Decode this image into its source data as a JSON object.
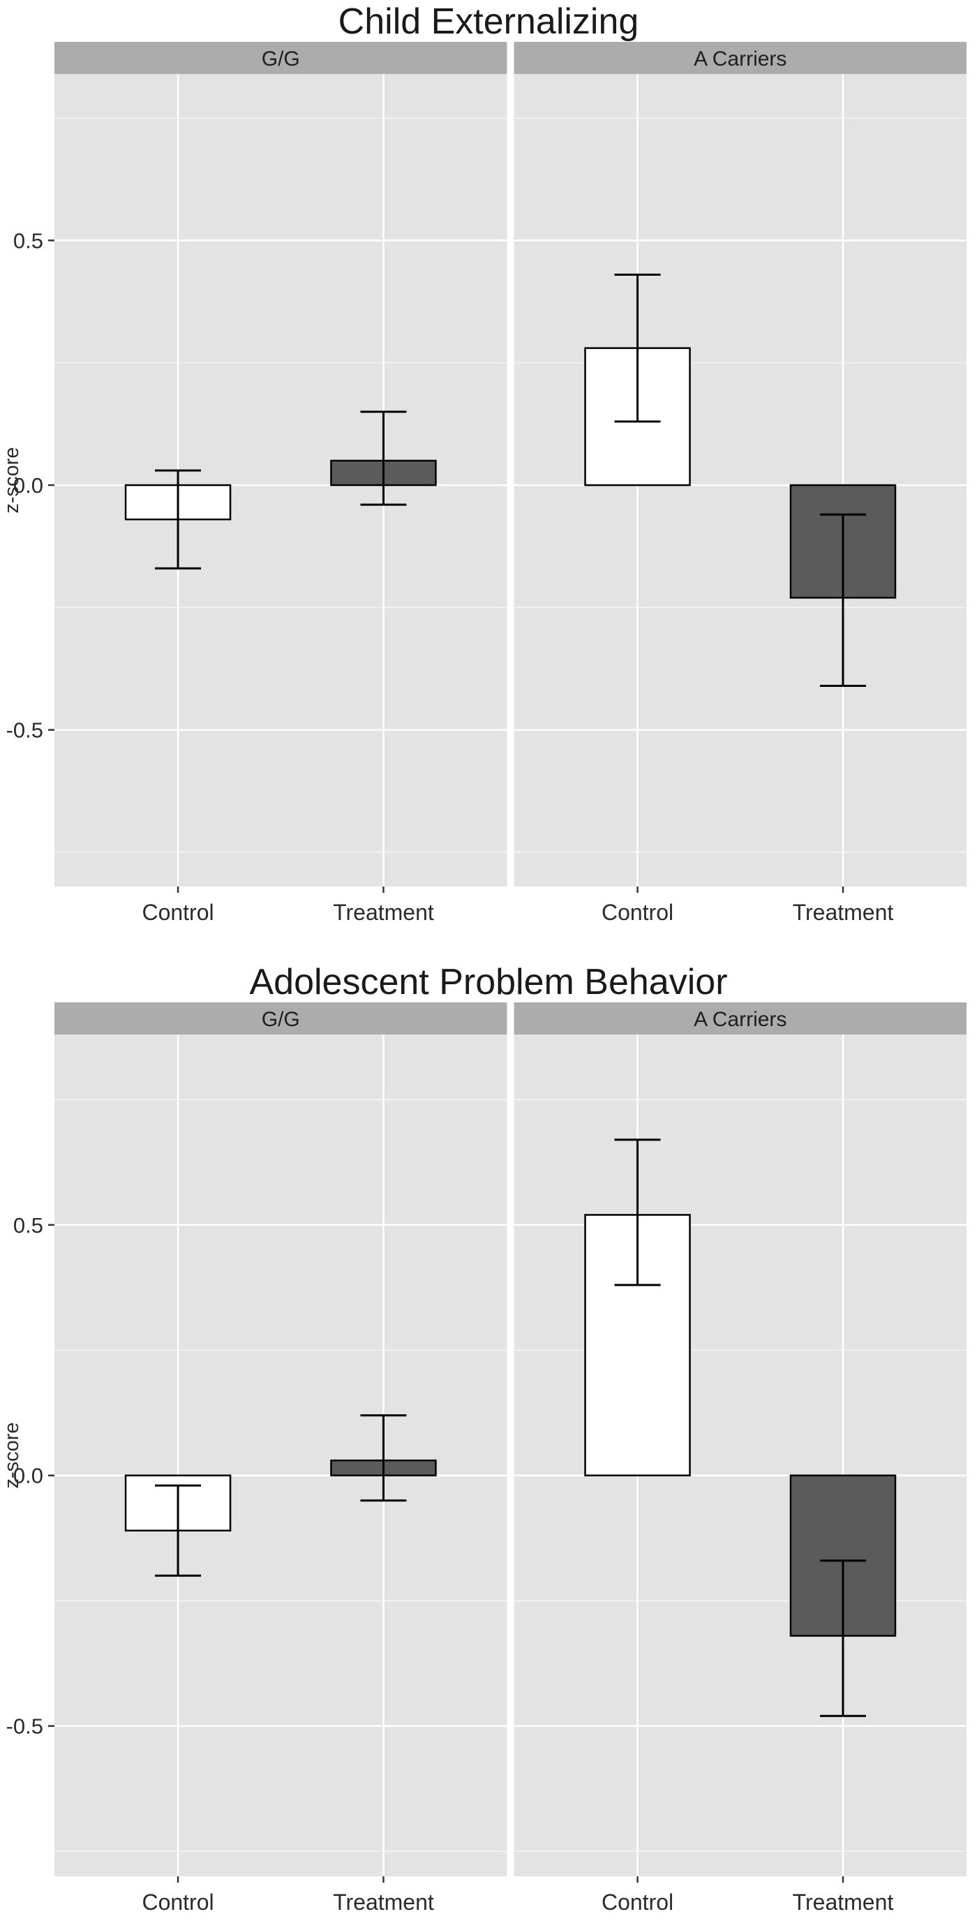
{
  "style": {
    "page_bg": "#ffffff",
    "panel_bg": "#e3e3e3",
    "strip_bg": "#acacac",
    "strip_text": "#1f1f1f",
    "grid_color": "#ffffff",
    "tick_color": "#333333",
    "text_color": "#2b2b2b",
    "title_color": "#1a1a1a",
    "error_color": "#000000"
  },
  "chart_data": [
    {
      "type": "bar",
      "title": "Child Externalizing",
      "ylabel": "z-score",
      "ylim": [
        -0.82,
        0.84
      ],
      "grid": true,
      "legend": "none",
      "yticks": [
        {
          "value": 0.5,
          "label": "0.5"
        },
        {
          "value": 0.0,
          "label": "0.0"
        },
        {
          "value": -0.5,
          "label": "-0.5"
        }
      ],
      "categories": [
        "Control",
        "Treatment"
      ],
      "bar_fills": [
        "#ffffff",
        "#5b5b5b"
      ],
      "bar_stroke": "#000000",
      "facets": [
        {
          "label": "G/G",
          "values": [
            -0.07,
            0.05
          ],
          "error_low": [
            -0.17,
            -0.04
          ],
          "error_high": [
            0.03,
            0.15
          ]
        },
        {
          "label": "A Carriers",
          "values": [
            0.28,
            -0.23
          ],
          "error_low": [
            0.13,
            -0.41
          ],
          "error_high": [
            0.43,
            -0.06
          ]
        }
      ]
    },
    {
      "type": "bar",
      "title": "Adolescent Problem Behavior",
      "ylabel": "z-score",
      "ylim": [
        -0.8,
        0.88
      ],
      "grid": true,
      "legend": "none",
      "yticks": [
        {
          "value": 0.5,
          "label": "0.5"
        },
        {
          "value": 0.0,
          "label": "0.0"
        },
        {
          "value": -0.5,
          "label": "-0.5"
        }
      ],
      "categories": [
        "Control",
        "Treatment"
      ],
      "bar_fills": [
        "#ffffff",
        "#5b5b5b"
      ],
      "bar_stroke": "#000000",
      "facets": [
        {
          "label": "G/G",
          "values": [
            -0.11,
            0.03
          ],
          "error_low": [
            -0.2,
            -0.05
          ],
          "error_high": [
            -0.02,
            0.12
          ]
        },
        {
          "label": "A Carriers",
          "values": [
            0.52,
            -0.32
          ],
          "error_low": [
            0.38,
            -0.48
          ],
          "error_high": [
            0.67,
            -0.17
          ]
        }
      ]
    }
  ]
}
